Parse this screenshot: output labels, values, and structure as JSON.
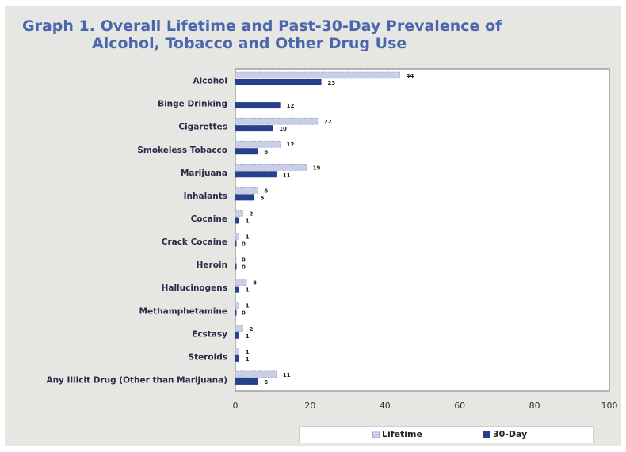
{
  "title_line1": "Graph 1. Overall Lifetime and Past-30-Day Prevalence of",
  "title_line2": "Alcohol, Tobacco and Other Drug Use",
  "legend": {
    "lifetime": "Lifetime",
    "thirty_day": "30-Day"
  },
  "colors": {
    "lifetime": "#c9cfe6",
    "thirty_day": "#26408b",
    "title": "#4b66ad"
  },
  "chart_data": {
    "type": "bar",
    "orientation": "horizontal",
    "categories": [
      "Alcohol",
      "Binge Drinking",
      "Cigarettes",
      "Smokeless Tobacco",
      "Marijuana",
      "Inhalants",
      "Cocaine",
      "Crack Cocaine",
      "Heroin",
      "Hallucinogens",
      "Methamphetamine",
      "Ecstasy",
      "Steroids",
      "Any Illicit Drug (Other than Marijuana)"
    ],
    "series": [
      {
        "name": "Lifetime",
        "values": [
          44,
          null,
          22,
          12,
          19,
          6,
          2,
          1,
          0,
          3,
          1,
          2,
          1,
          11
        ]
      },
      {
        "name": "30-Day",
        "values": [
          23,
          12,
          10,
          6,
          11,
          5,
          1,
          0,
          0,
          1,
          0,
          1,
          1,
          6
        ]
      }
    ],
    "xlim": [
      0,
      100
    ],
    "xticks": [
      0,
      20,
      40,
      60,
      80,
      100
    ],
    "grid": false,
    "legend_position": "bottom"
  }
}
